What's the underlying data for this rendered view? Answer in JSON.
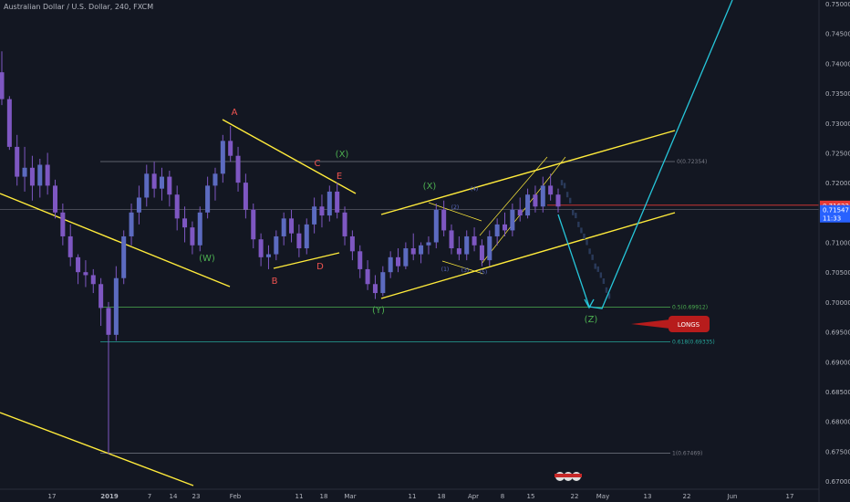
{
  "header": {
    "symbol_title": "Australian Dollar / U.S. Dollar, 240, FXCM"
  },
  "chart_data": {
    "type": "candlestick",
    "title": "Australian Dollar / U.S. Dollar, 240, FXCM",
    "ylim": [
      0.6695,
      0.751
    ],
    "y_ticks": [
      "0.75000",
      "0.74500",
      "0.74000",
      "0.73500",
      "0.73000",
      "0.72500",
      "0.72000",
      "0.71500",
      "0.71000",
      "0.70500",
      "0.70000",
      "0.69500",
      "0.69000",
      "0.68500",
      "0.68000",
      "0.67500",
      "0.67000"
    ],
    "x_ticks": [
      "17",
      "2019",
      "7",
      "14",
      "23",
      "Feb",
      "11",
      "18",
      "Mar",
      "11",
      "18",
      "Apr",
      "8",
      "15",
      "22",
      "May",
      "13",
      "22",
      "Jun",
      "17"
    ],
    "price_series": [
      [
        0.7385,
        0.742,
        0.733,
        0.734
      ],
      [
        0.734,
        0.7345,
        0.7255,
        0.726
      ],
      [
        0.726,
        0.728,
        0.7195,
        0.721
      ],
      [
        0.721,
        0.726,
        0.7185,
        0.7225
      ],
      [
        0.7225,
        0.7245,
        0.717,
        0.7195
      ],
      [
        0.7195,
        0.724,
        0.7175,
        0.723
      ],
      [
        0.723,
        0.725,
        0.718,
        0.7195
      ],
      [
        0.7195,
        0.7205,
        0.714,
        0.715
      ],
      [
        0.715,
        0.7165,
        0.7095,
        0.711
      ],
      [
        0.711,
        0.713,
        0.706,
        0.7075
      ],
      [
        0.7075,
        0.708,
        0.703,
        0.705
      ],
      [
        0.705,
        0.707,
        0.7025,
        0.7045
      ],
      [
        0.7045,
        0.7055,
        0.7015,
        0.703
      ],
      [
        0.703,
        0.704,
        0.696,
        0.699
      ],
      [
        0.699,
        0.7,
        0.6745,
        0.6945
      ],
      [
        0.6945,
        0.706,
        0.6935,
        0.704
      ],
      [
        0.704,
        0.712,
        0.703,
        0.711
      ],
      [
        0.711,
        0.7165,
        0.7095,
        0.715
      ],
      [
        0.715,
        0.7195,
        0.713,
        0.7175
      ],
      [
        0.7175,
        0.723,
        0.716,
        0.7215
      ],
      [
        0.7215,
        0.7235,
        0.7175,
        0.719
      ],
      [
        0.719,
        0.7225,
        0.717,
        0.721
      ],
      [
        0.721,
        0.722,
        0.716,
        0.718
      ],
      [
        0.718,
        0.7195,
        0.712,
        0.714
      ],
      [
        0.714,
        0.716,
        0.71,
        0.7125
      ],
      [
        0.7125,
        0.7135,
        0.708,
        0.7095
      ],
      [
        0.7095,
        0.716,
        0.7085,
        0.715
      ],
      [
        0.715,
        0.721,
        0.714,
        0.7195
      ],
      [
        0.7195,
        0.7225,
        0.717,
        0.7215
      ],
      [
        0.7215,
        0.728,
        0.72,
        0.727
      ],
      [
        0.727,
        0.7295,
        0.7235,
        0.7245
      ],
      [
        0.7245,
        0.726,
        0.7185,
        0.72
      ],
      [
        0.72,
        0.7215,
        0.714,
        0.7155
      ],
      [
        0.7155,
        0.7165,
        0.709,
        0.7105
      ],
      [
        0.7105,
        0.7115,
        0.706,
        0.7075
      ],
      [
        0.7075,
        0.7095,
        0.7055,
        0.708
      ],
      [
        0.708,
        0.712,
        0.707,
        0.711
      ],
      [
        0.711,
        0.715,
        0.7095,
        0.714
      ],
      [
        0.714,
        0.7155,
        0.71,
        0.7115
      ],
      [
        0.7115,
        0.713,
        0.7075,
        0.709
      ],
      [
        0.709,
        0.714,
        0.708,
        0.713
      ],
      [
        0.713,
        0.7175,
        0.7115,
        0.716
      ],
      [
        0.716,
        0.718,
        0.7125,
        0.7145
      ],
      [
        0.7145,
        0.7195,
        0.7135,
        0.7185
      ],
      [
        0.7185,
        0.72,
        0.714,
        0.715
      ],
      [
        0.715,
        0.716,
        0.7095,
        0.711
      ],
      [
        0.711,
        0.712,
        0.707,
        0.7085
      ],
      [
        0.7085,
        0.7095,
        0.704,
        0.7055
      ],
      [
        0.7055,
        0.707,
        0.702,
        0.703
      ],
      [
        0.703,
        0.7045,
        0.7005,
        0.7015
      ],
      [
        0.7015,
        0.706,
        0.701,
        0.705
      ],
      [
        0.705,
        0.7085,
        0.704,
        0.7075
      ],
      [
        0.7075,
        0.709,
        0.705,
        0.706
      ],
      [
        0.706,
        0.71,
        0.7055,
        0.709
      ],
      [
        0.709,
        0.7115,
        0.707,
        0.708
      ],
      [
        0.708,
        0.71,
        0.7065,
        0.7095
      ],
      [
        0.7095,
        0.711,
        0.708,
        0.71
      ],
      [
        0.71,
        0.7165,
        0.709,
        0.7155
      ],
      [
        0.7155,
        0.717,
        0.711,
        0.712
      ],
      [
        0.712,
        0.713,
        0.708,
        0.709
      ],
      [
        0.709,
        0.711,
        0.707,
        0.708
      ],
      [
        0.708,
        0.712,
        0.707,
        0.711
      ],
      [
        0.711,
        0.7125,
        0.7085,
        0.7095
      ],
      [
        0.7095,
        0.7105,
        0.706,
        0.707
      ],
      [
        0.707,
        0.712,
        0.706,
        0.711
      ],
      [
        0.711,
        0.714,
        0.7095,
        0.713
      ],
      [
        0.713,
        0.715,
        0.711,
        0.712
      ],
      [
        0.712,
        0.7165,
        0.711,
        0.7155
      ],
      [
        0.7155,
        0.7175,
        0.7135,
        0.7145
      ],
      [
        0.7145,
        0.719,
        0.714,
        0.718
      ],
      [
        0.718,
        0.7195,
        0.715,
        0.716
      ],
      [
        0.716,
        0.721,
        0.715,
        0.7195
      ],
      [
        0.7195,
        0.7215,
        0.717,
        0.718
      ],
      [
        0.718,
        0.719,
        0.715,
        0.716
      ]
    ],
    "projection_series": [
      0.72,
      0.7195,
      0.718,
      0.717,
      0.715,
      0.7145,
      0.713,
      0.712,
      0.711,
      0.71,
      0.7085,
      0.7075,
      0.706,
      0.7055,
      0.7045,
      0.7035,
      0.702,
      0.701
    ],
    "price_labels": [
      {
        "text": "0.71622",
        "price": 0.71622,
        "color": "#e53935"
      },
      {
        "text": "0.71547",
        "price": 0.71547,
        "color": "#2962ff"
      },
      {
        "text": "11:33",
        "price": 0.7142,
        "color": "#2962ff"
      }
    ],
    "fib_levels": [
      {
        "label": "0(0.72354)",
        "price": 0.72354,
        "color": "#787b86"
      },
      {
        "label": "0.5(0.69912)",
        "price": 0.69912,
        "color": "#4caf50"
      },
      {
        "label": "0.618(0.69335)",
        "price": 0.69335,
        "color": "#26a69a"
      },
      {
        "label": "1(0.67469)",
        "price": 0.67469,
        "color": "#787b86"
      }
    ],
    "wave_labels": [
      {
        "text": "A",
        "color": "#ef5350"
      },
      {
        "text": "B",
        "color": "#ef5350"
      },
      {
        "text": "C",
        "color": "#ef5350"
      },
      {
        "text": "D",
        "color": "#ef5350"
      },
      {
        "text": "E",
        "color": "#ef5350"
      },
      {
        "text": "(W)",
        "color": "#4caf50"
      },
      {
        "text": "(X)",
        "color": "#4caf50"
      },
      {
        "text": "(Y)",
        "color": "#4caf50"
      },
      {
        "text": "(X)",
        "color": "#4caf50"
      },
      {
        "text": "(Z)",
        "color": "#4caf50"
      },
      {
        "text": "(1)",
        "color": "#5c6bc0"
      },
      {
        "text": "(2)",
        "color": "#5c6bc0"
      },
      {
        "text": "(3)",
        "color": "#5c6bc0"
      },
      {
        "text": "(4)",
        "color": "#5c6bc0"
      },
      {
        "text": "(5)",
        "color": "#5c6bc0"
      }
    ],
    "callout": {
      "text": "LONGS",
      "color": "#b71c1c"
    },
    "colors": {
      "background": "#131722",
      "candles": "#7e57c2",
      "trendline": "#ffeb3b",
      "projection": "#26c6da"
    }
  }
}
